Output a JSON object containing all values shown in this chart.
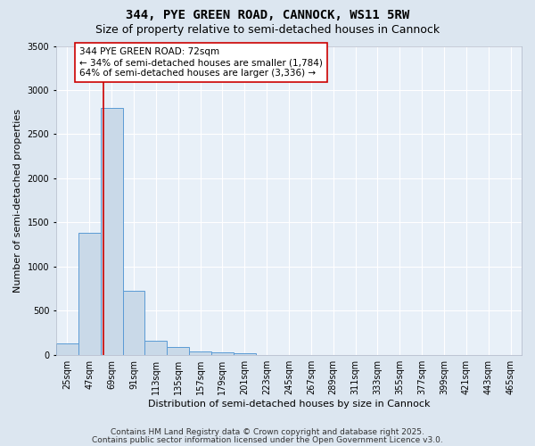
{
  "title_line1": "344, PYE GREEN ROAD, CANNOCK, WS11 5RW",
  "title_line2": "Size of property relative to semi-detached houses in Cannock",
  "xlabel": "Distribution of semi-detached houses by size in Cannock",
  "ylabel": "Number of semi-detached properties",
  "footnote_line1": "Contains HM Land Registry data © Crown copyright and database right 2025.",
  "footnote_line2": "Contains public sector information licensed under the Open Government Licence v3.0.",
  "bin_labels": [
    "25sqm",
    "47sqm",
    "69sqm",
    "91sqm",
    "113sqm",
    "135sqm",
    "157sqm",
    "179sqm",
    "201sqm",
    "223sqm",
    "245sqm",
    "267sqm",
    "289sqm",
    "311sqm",
    "333sqm",
    "355sqm",
    "377sqm",
    "399sqm",
    "421sqm",
    "443sqm",
    "465sqm"
  ],
  "bin_edges": [
    25,
    47,
    69,
    91,
    113,
    135,
    157,
    179,
    201,
    223,
    245,
    267,
    289,
    311,
    333,
    355,
    377,
    399,
    421,
    443,
    465,
    487
  ],
  "values": [
    130,
    1380,
    2800,
    720,
    155,
    90,
    35,
    25,
    20,
    0,
    0,
    0,
    0,
    0,
    0,
    0,
    0,
    0,
    0,
    0,
    0
  ],
  "bar_facecolor": "#c9d9e8",
  "bar_edgecolor": "#5b9bd5",
  "property_size": 72,
  "property_line_color": "#cc0000",
  "annotation_text": "344 PYE GREEN ROAD: 72sqm\n← 34% of semi-detached houses are smaller (1,784)\n64% of semi-detached houses are larger (3,336) →",
  "annotation_box_edgecolor": "#cc0000",
  "annotation_box_facecolor": "#ffffff",
  "ylim": [
    0,
    3500
  ],
  "outer_background": "#dce6f0",
  "plot_background": "#e8f0f8",
  "grid_color": "#ffffff",
  "title_fontsize": 10,
  "subtitle_fontsize": 9,
  "axis_label_fontsize": 8,
  "tick_fontsize": 7,
  "annotation_fontsize": 7.5,
  "footnote_fontsize": 6.5
}
